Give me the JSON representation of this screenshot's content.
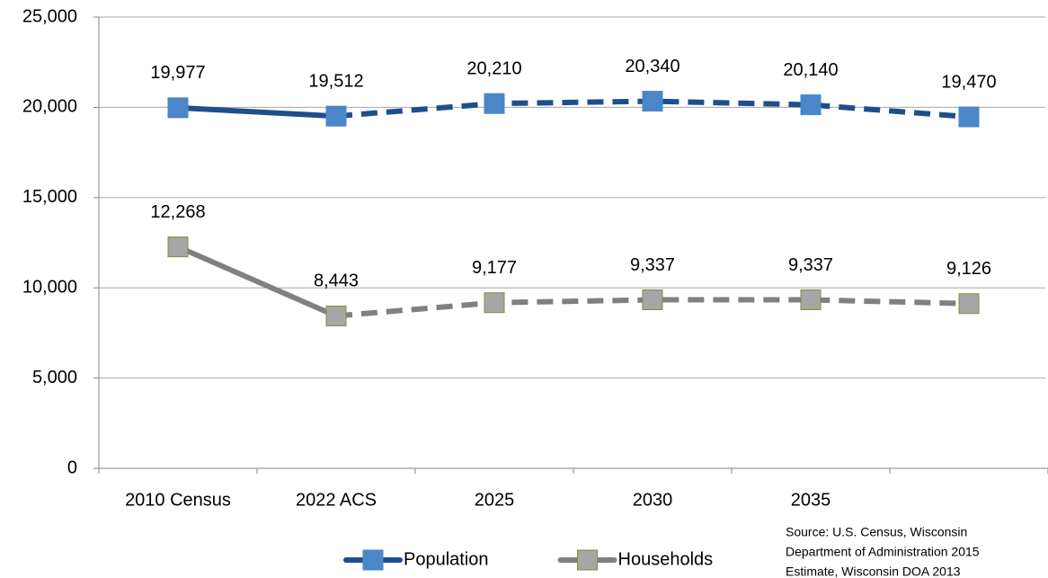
{
  "chart_data": {
    "type": "line",
    "categories": [
      "2010 Census",
      "2022 ACS",
      "2025",
      "2030",
      "2035",
      null
    ],
    "series": [
      {
        "name": "Population",
        "color": "#1f4e8c",
        "marker_color": "#4a86c8",
        "marker_edge": "#4a86c8",
        "dashed_after": 1,
        "values": [
          19977,
          19512,
          20210,
          20340,
          20140,
          19470
        ],
        "value_labels": [
          "19,977",
          "19,512",
          "20,210",
          "20,340",
          "20,140",
          "19,470"
        ]
      },
      {
        "name": "Households",
        "color": "#808080",
        "marker_color": "#a6a6a6",
        "marker_edge": "#77933c",
        "dashed_after": 1,
        "values": [
          12268,
          8443,
          9177,
          9337,
          9337,
          9126
        ],
        "value_labels": [
          "12,268",
          "8,443",
          "9,177",
          "9,337",
          "9,337",
          "9,126"
        ]
      }
    ],
    "ylim": [
      0,
      25000
    ],
    "yticks": [
      0,
      {
        "value": 5000,
        "label": "5,000"
      },
      {
        "value": 10000,
        "label": "10,000"
      },
      {
        "value": 15000,
        "label": "15,000"
      },
      {
        "value": 20000,
        "label": "20,000"
      },
      {
        "value": 25000,
        "label": "25,000"
      }
    ],
    "grid": true,
    "legend": "bottom",
    "source": [
      "Source: U.S. Census, Wisconsin",
      "Department of Administration 2015",
      "Estimate, Wisconsin DOA 2013"
    ]
  }
}
